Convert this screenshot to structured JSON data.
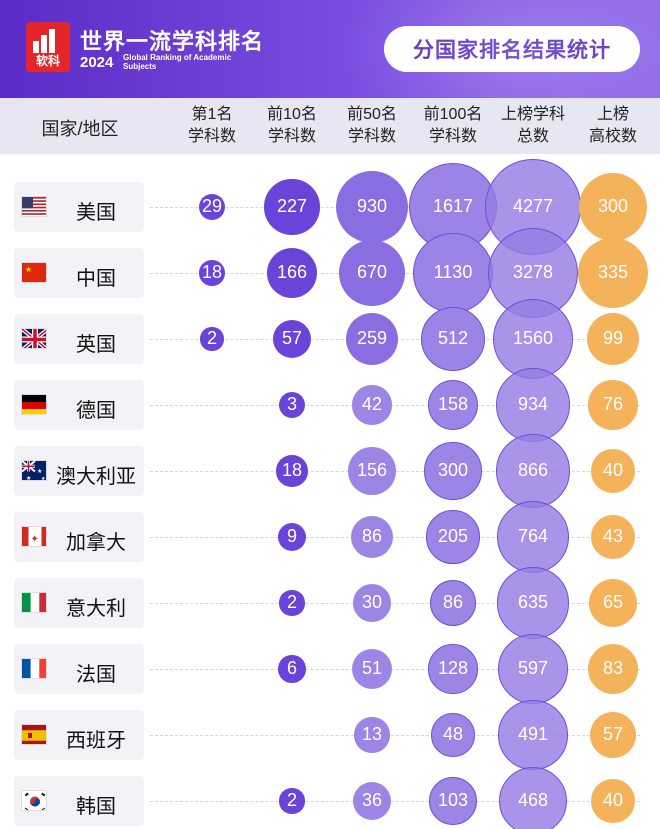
{
  "header": {
    "logo_text": "软科",
    "title": "世界一流学科排名",
    "year": "2024",
    "subtitle": "Global Ranking of Academic Subjects",
    "pill": "分国家排名结果统计"
  },
  "columns": [
    {
      "line1": "国家/地区",
      "line2": ""
    },
    {
      "line1": "第1名",
      "line2": "学科数"
    },
    {
      "line1": "前10名",
      "line2": "学科数"
    },
    {
      "line1": "前50名",
      "line2": "学科数"
    },
    {
      "line1": "前100名",
      "line2": "学科数"
    },
    {
      "line1": "上榜学科",
      "line2": "总数"
    },
    {
      "line1": "上榜",
      "line2": "高校数"
    }
  ],
  "colors": {
    "purple_dark": "#5a34d0",
    "purple_light": "#9c85e6",
    "orange": "#f4b25a",
    "header_bg": "#6a3bd6"
  },
  "rows": [
    {
      "flag": "us-flag",
      "name": "美国",
      "top1": "29",
      "top10": "227",
      "top50": "930",
      "top100": "1617",
      "total": "4277",
      "univ": "300"
    },
    {
      "flag": "cn-flag",
      "name": "中国",
      "top1": "18",
      "top10": "166",
      "top50": "670",
      "top100": "1130",
      "total": "3278",
      "univ": "335"
    },
    {
      "flag": "gb-flag",
      "name": "英国",
      "top1": "2",
      "top10": "57",
      "top50": "259",
      "top100": "512",
      "total": "1560",
      "univ": "99"
    },
    {
      "flag": "de-flag",
      "name": "德国",
      "top1": "",
      "top10": "3",
      "top50": "42",
      "top100": "158",
      "total": "934",
      "univ": "76"
    },
    {
      "flag": "au-flag",
      "name": "澳大利亚",
      "top1": "",
      "top10": "18",
      "top50": "156",
      "top100": "300",
      "total": "866",
      "univ": "40"
    },
    {
      "flag": "ca-flag",
      "name": "加拿大",
      "top1": "",
      "top10": "9",
      "top50": "86",
      "top100": "205",
      "total": "764",
      "univ": "43"
    },
    {
      "flag": "it-flag",
      "name": "意大利",
      "top1": "",
      "top10": "2",
      "top50": "30",
      "top100": "86",
      "total": "635",
      "univ": "65"
    },
    {
      "flag": "fr-flag",
      "name": "法国",
      "top1": "",
      "top10": "6",
      "top50": "51",
      "top100": "128",
      "total": "597",
      "univ": "83"
    },
    {
      "flag": "es-flag",
      "name": "西班牙",
      "top1": "",
      "top10": "",
      "top50": "13",
      "top100": "48",
      "total": "491",
      "univ": "57"
    },
    {
      "flag": "kr-flag",
      "name": "韩国",
      "top1": "",
      "top10": "2",
      "top50": "36",
      "top100": "103",
      "total": "468",
      "univ": "40"
    }
  ]
}
